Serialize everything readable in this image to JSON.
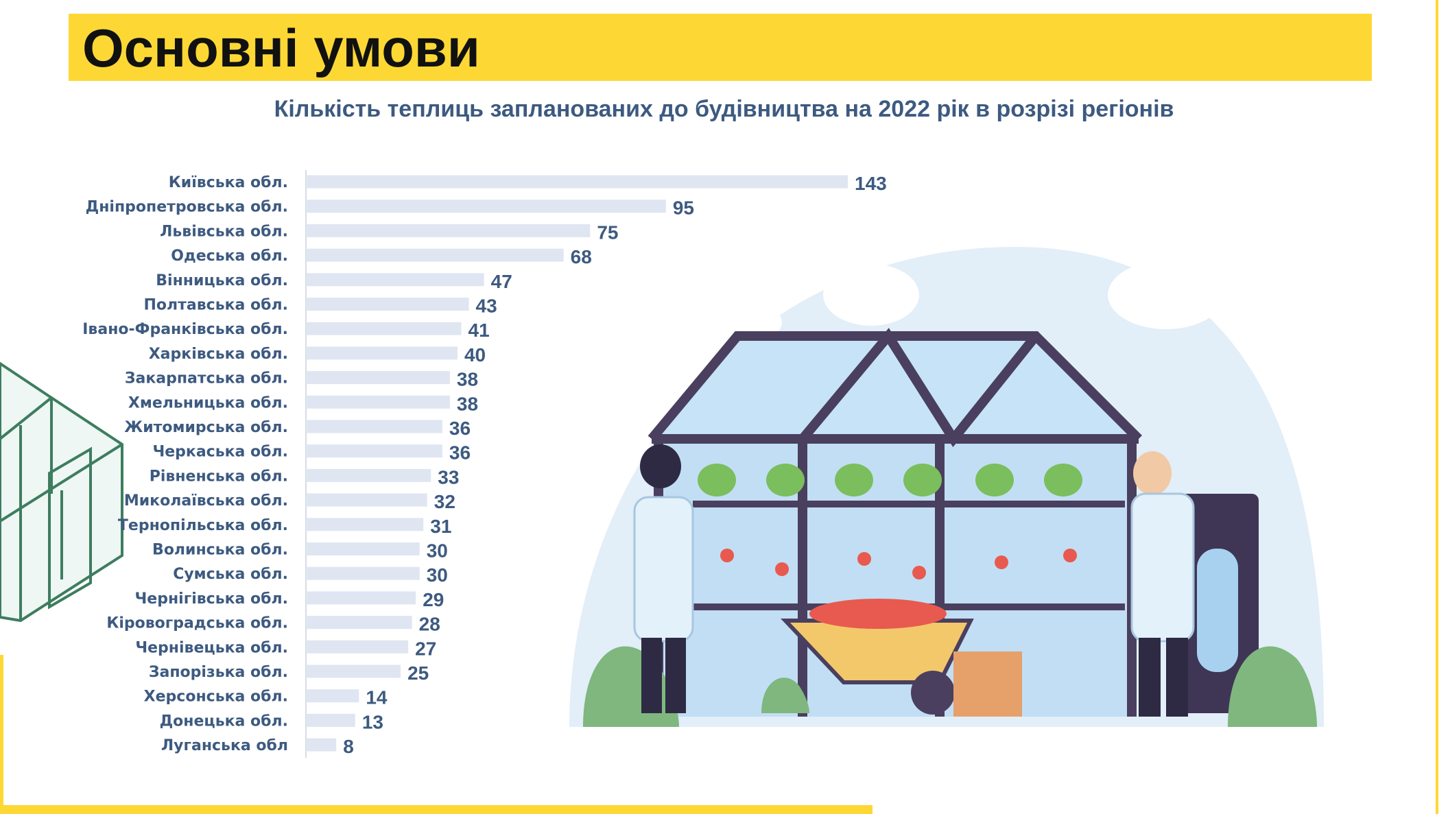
{
  "page": {
    "title": "Основні умови"
  },
  "colors": {
    "accent_yellow": "#FDD835",
    "text_blue": "#3D5A80",
    "bar_fill": "#DFE6F2"
  },
  "chart_data": {
    "type": "bar",
    "orientation": "horizontal",
    "title": "Кількість теплиць запланованих до будівництва  на 2022 рік в розрізі регіонів",
    "xlabel": "",
    "ylabel": "",
    "categories": [
      "Київська обл.",
      "Дніпропетровська обл.",
      "Львівська обл.",
      "Одеська обл.",
      "Вінницька обл.",
      "Полтавська обл.",
      "Івано-Франківська обл.",
      "Харківська обл.",
      "Закарпатська обл.",
      "Хмельницька обл.",
      "Житомирська обл.",
      "Черкаська обл.",
      "Рівненська обл.",
      "Миколаївська обл.",
      "Тернопільська обл.",
      "Волинська обл.",
      "Сумська обл.",
      "Чернігівська обл.",
      "Кіровоградська обл.",
      "Чернівецька обл.",
      "Запорізька обл.",
      "Херсонська обл.",
      "Донецька обл.",
      "Луганська обл"
    ],
    "values": [
      143,
      95,
      75,
      68,
      47,
      43,
      41,
      40,
      38,
      38,
      36,
      36,
      33,
      32,
      31,
      30,
      30,
      29,
      28,
      27,
      25,
      14,
      13,
      8
    ],
    "xlim": [
      0,
      143
    ],
    "grid": false,
    "legend": "none"
  }
}
